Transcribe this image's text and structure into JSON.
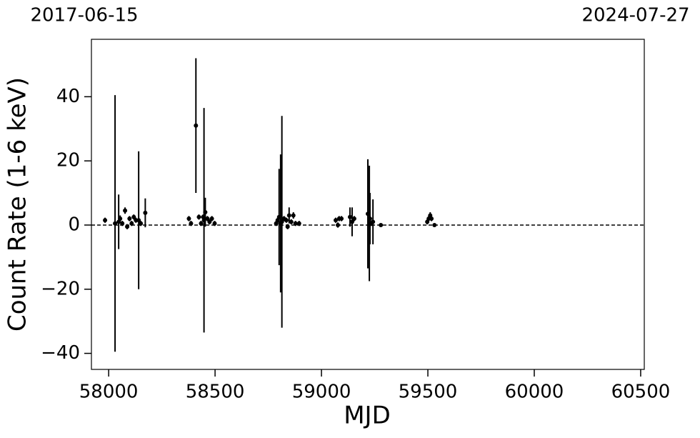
{
  "chart_data": {
    "type": "scatter",
    "xlabel": "MJD",
    "ylabel": "Count Rate (1-6 keV)",
    "top_labels": [
      "2017-06-15",
      "2024-07-27"
    ],
    "x": [
      57983,
      58030,
      58047,
      58054,
      58064,
      58077,
      58087,
      58098,
      58108,
      58118,
      58128,
      58141,
      58151,
      58172,
      58377,
      58387,
      58410,
      58424,
      58434,
      58444,
      58448,
      58454,
      58464,
      58474,
      58485,
      58498,
      58787,
      58794,
      58801,
      58808,
      58814,
      58824,
      58835,
      58841,
      58848,
      58858,
      58868,
      58878,
      58895,
      59067,
      59077,
      59083,
      59094,
      59134,
      59144,
      59154,
      59218,
      59225,
      59228,
      59235,
      59242,
      59279,
      59497,
      59504,
      59511,
      59517,
      59531
    ],
    "y": [
      1.5,
      0.5,
      1,
      2,
      0.5,
      4.5,
      -0.5,
      2,
      0.5,
      2.5,
      1.5,
      1.5,
      0.5,
      3.8,
      2,
      0.5,
      31,
      2.5,
      0.5,
      2.5,
      1.5,
      4,
      2,
      1,
      2,
      0.5,
      0.5,
      1.5,
      2.5,
      0.5,
      1,
      2,
      1.5,
      -0.5,
      3,
      1,
      3,
      0.5,
      0.5,
      1.5,
      0,
      2,
      2,
      2.5,
      1,
      2,
      3.5,
      0.5,
      2,
      0.5,
      1,
      0,
      1,
      2,
      3,
      2,
      0
    ],
    "errors": [
      0.8,
      40,
      8.5,
      1,
      0.8,
      1,
      0.8,
      0.8,
      0.8,
      0.8,
      0.8,
      21.5,
      0.8,
      4.5,
      0.8,
      0.8,
      21,
      0.8,
      0.8,
      0.8,
      35,
      4.5,
      0.8,
      0.8,
      0.8,
      0.8,
      0.8,
      0.8,
      15,
      21.5,
      33,
      0.8,
      0.8,
      0.8,
      2.5,
      0.8,
      1,
      0.8,
      0.8,
      0.8,
      0.8,
      0.8,
      0.8,
      3,
      4.5,
      0.8,
      17,
      18,
      8,
      0.8,
      7,
      0.3,
      0.8,
      0.8,
      1,
      0.8,
      0.3
    ],
    "color": "#000000",
    "hline": 0,
    "xlim": [
      57919,
      60517
    ],
    "ylim": [
      -45,
      57.9
    ],
    "xticks": [
      58000,
      58500,
      59000,
      59500,
      60000,
      60500
    ],
    "yticks": [
      {
        "value": -40,
        "label": "−40"
      },
      {
        "value": -20,
        "label": "−20"
      },
      0,
      20,
      40
    ]
  }
}
